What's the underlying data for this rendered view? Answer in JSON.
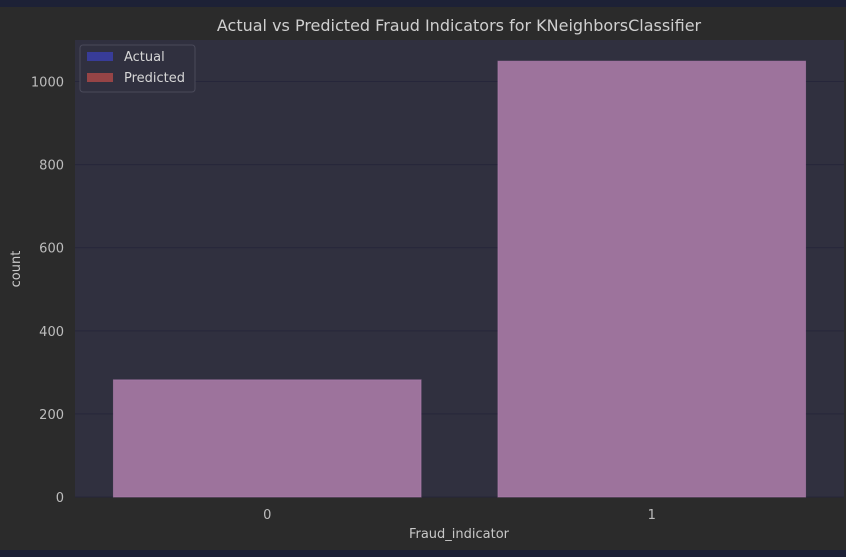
{
  "chart_data": {
    "type": "bar",
    "title": "Actual vs Predicted Fraud Indicators for KNeighborsClassifier",
    "xlabel": "Fraud_indicator",
    "ylabel": "count",
    "categories": [
      "0",
      "1"
    ],
    "series": [
      {
        "name": "Actual",
        "values": [
          282,
          1049
        ],
        "color": "#3a3ea8"
      },
      {
        "name": "Predicted",
        "values": [
          282,
          1049
        ],
        "color": "#a84848"
      }
    ],
    "overlap_color": "#9d739c",
    "ylim": [
      0,
      1100
    ],
    "yticks": [
      0,
      200,
      400,
      600,
      800,
      1000
    ],
    "grid": true,
    "legend_position": "top-left",
    "plot_background": "#30303f",
    "figure_background": "#2b2b2b"
  }
}
